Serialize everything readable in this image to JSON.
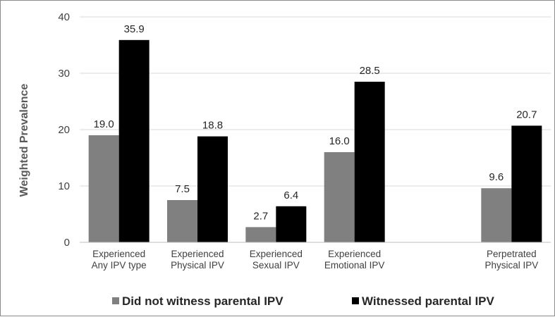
{
  "chart_data": {
    "type": "bar",
    "title": "",
    "xlabel": "",
    "ylabel": "Weighted Prevalence",
    "ylim": [
      0,
      40
    ],
    "yticks": [
      0,
      10,
      20,
      30,
      40
    ],
    "grid": true,
    "legend_position": "bottom",
    "categories": [
      [
        "Experienced",
        "Any IPV type"
      ],
      [
        "Experienced",
        "Physical IPV"
      ],
      [
        "Experienced",
        "Sexual IPV"
      ],
      [
        "Experienced",
        "Emotional IPV"
      ],
      [
        "",
        ""
      ],
      [
        "Perpetrated",
        "Physical IPV"
      ]
    ],
    "series": [
      {
        "name": "Did not witness parental IPV",
        "color": "#808080",
        "values": [
          19.0,
          7.5,
          2.7,
          16.0,
          null,
          9.6
        ],
        "labels": [
          "19.0",
          "7.5",
          "2.7",
          "16.0",
          "",
          "9.6"
        ]
      },
      {
        "name": "Witnessed parental IPV",
        "color": "#000000",
        "values": [
          35.9,
          18.8,
          6.4,
          28.5,
          null,
          20.7
        ],
        "labels": [
          "35.9",
          "18.8",
          "6.4",
          "28.5",
          "",
          "20.7"
        ]
      }
    ]
  }
}
